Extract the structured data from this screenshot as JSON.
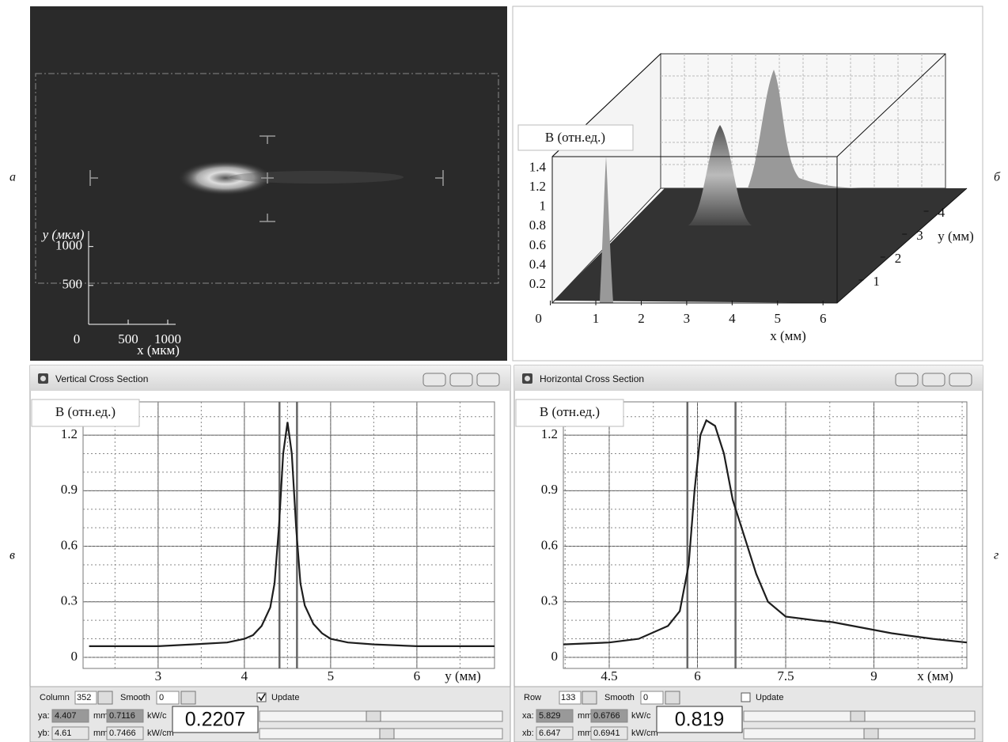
{
  "panel_labels": [
    "а",
    "б",
    "в",
    "г"
  ],
  "chart_data": [
    {
      "type": "image",
      "ylabel": "y (мкм)",
      "xlabel": "x (мкм)",
      "xlim": [
        0,
        1100
      ],
      "ylim": [
        0,
        1200
      ],
      "xticks": [
        0,
        500,
        1000
      ],
      "yticks": [
        500,
        1000
      ]
    },
    {
      "type": "surface3d",
      "zlabel": "B (отн.ед.)",
      "xlabel": "x (мм)",
      "ylabel": "y (мм)",
      "xlim": [
        0,
        6.31
      ],
      "ylim": [
        0,
        5
      ],
      "zlim": [
        0,
        1.52
      ],
      "xticks": [
        0,
        1,
        2,
        3,
        4,
        5,
        6
      ],
      "yticks": [
        1,
        2,
        3,
        4
      ],
      "zticks": [
        0.2,
        0.4,
        0.6,
        0.8,
        1.0,
        1.2,
        1.4
      ]
    },
    {
      "type": "line",
      "ylabel": "B (отн.ед.)",
      "xlabel": "y (мм)",
      "xlim": [
        2.13,
        6.9
      ],
      "ylim": [
        -0.06,
        1.38
      ],
      "xticks": [
        3,
        4,
        5,
        6
      ],
      "yticks": [
        0,
        0.3,
        0.6,
        0.9,
        1.2
      ],
      "grid": true,
      "x": [
        2.2,
        2.6,
        3.0,
        3.4,
        3.8,
        4.0,
        4.1,
        4.2,
        4.3,
        4.35,
        4.4,
        4.45,
        4.5,
        4.55,
        4.6,
        4.65,
        4.7,
        4.8,
        4.9,
        5.0,
        5.2,
        5.5,
        6.0,
        6.5,
        6.9
      ],
      "series": [
        {
          "color": "#1e1e1e",
          "values": [
            0.06,
            0.06,
            0.06,
            0.07,
            0.08,
            0.1,
            0.12,
            0.17,
            0.27,
            0.4,
            0.7,
            1.1,
            1.27,
            1.1,
            0.7,
            0.4,
            0.28,
            0.18,
            0.13,
            0.1,
            0.08,
            0.07,
            0.06,
            0.06,
            0.06
          ]
        }
      ],
      "window": {
        "title": "Vertical Cross Section",
        "selector_label": "Column",
        "selector_value": "352",
        "smooth_label": "Smooth",
        "smooth_value": "0",
        "update_label": "Update",
        "update_checked": true,
        "cursor_a": {
          "label": "ya:",
          "position": 4.407,
          "unit": "mm",
          "reading": 0.7116,
          "reading_unit": "kW/c"
        },
        "cursor_b": {
          "label": "yb:",
          "position": 4.61,
          "unit": "mm",
          "reading": 0.7466,
          "reading_unit": "kW/cm"
        },
        "readout": 0.2207
      }
    },
    {
      "type": "line",
      "ylabel": "B (отн.ед.)",
      "xlabel": "x (мм)",
      "xlim": [
        3.72,
        10.58
      ],
      "ylim": [
        -0.06,
        1.38
      ],
      "xticks": [
        4.5,
        6,
        7.5,
        9
      ],
      "yticks": [
        0,
        0.3,
        0.6,
        0.9,
        1.2
      ],
      "grid": true,
      "x": [
        3.72,
        4.5,
        5.0,
        5.5,
        5.7,
        5.85,
        5.95,
        6.05,
        6.15,
        6.3,
        6.45,
        6.6,
        6.8,
        7.0,
        7.2,
        7.5,
        8.0,
        8.3,
        8.8,
        9.3,
        10.0,
        10.58
      ],
      "series": [
        {
          "color": "#1e1e1e",
          "values": [
            0.07,
            0.08,
            0.1,
            0.17,
            0.25,
            0.5,
            0.9,
            1.2,
            1.28,
            1.25,
            1.1,
            0.85,
            0.65,
            0.45,
            0.3,
            0.22,
            0.2,
            0.19,
            0.16,
            0.13,
            0.1,
            0.08
          ]
        }
      ],
      "window": {
        "title": "Horizontal Cross Section",
        "selector_label": "Row",
        "selector_value": "133",
        "smooth_label": "Smooth",
        "smooth_value": "0",
        "update_label": "Update",
        "update_checked": false,
        "cursor_a": {
          "label": "xa:",
          "position": 5.829,
          "unit": "mm",
          "reading": 0.6766,
          "reading_unit": "kW/c"
        },
        "cursor_b": {
          "label": "xb:",
          "position": 6.647,
          "unit": "mm",
          "reading": 0.6941,
          "reading_unit": "kW/cm"
        },
        "readout": 0.819
      }
    }
  ]
}
